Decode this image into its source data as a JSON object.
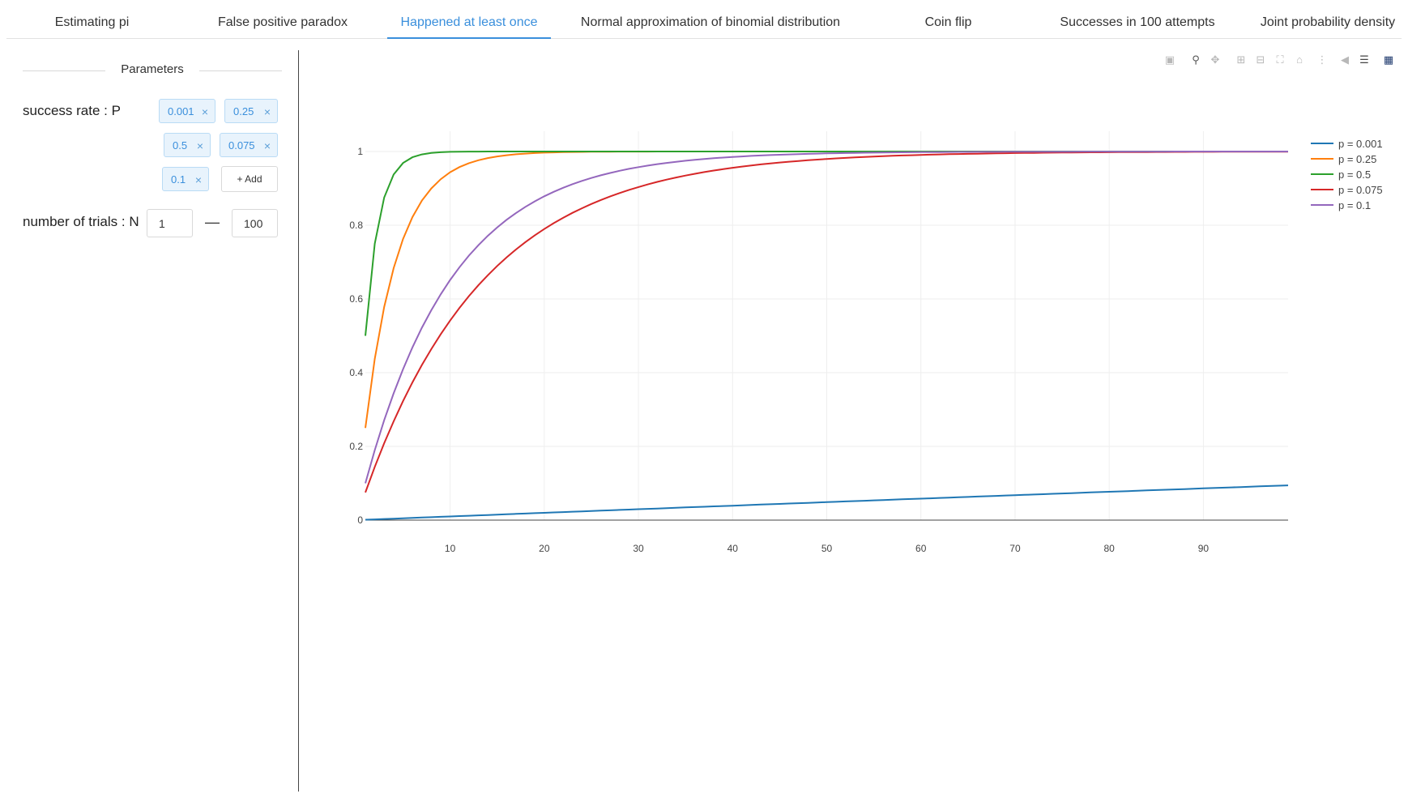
{
  "tabs": [
    {
      "label": "Estimating pi",
      "active": false
    },
    {
      "label": "False positive paradox",
      "active": false
    },
    {
      "label": "Happened at least once",
      "active": true
    },
    {
      "label": "Normal approximation of binomial distribution",
      "active": false
    },
    {
      "label": "Coin flip",
      "active": false
    },
    {
      "label": "Successes in 100 attempts",
      "active": false
    },
    {
      "label": "Joint probability density",
      "active": false
    }
  ],
  "parameters": {
    "title": "Parameters",
    "success_rate_label": "success rate : P",
    "success_rates": [
      "0.001",
      "0.25",
      "0.5",
      "0.075",
      "0.1"
    ],
    "remove_icon": "close-icon",
    "add_label": "+ Add",
    "trials_label": "number of trials : N",
    "trials_min": "1",
    "trials_separator": "—",
    "trials_max": "100"
  },
  "modebar": {
    "icons": [
      "camera-icon",
      "zoom-icon",
      "pan-icon",
      "zoom-in-icon",
      "zoom-out-icon",
      "autoscale-icon",
      "reset-axes-icon",
      "spike-lines-icon",
      "hover-closest-icon",
      "hover-compare-icon",
      "plotly-logo-icon"
    ]
  },
  "chart_data": {
    "type": "line",
    "title": "",
    "xlabel": "",
    "ylabel": "",
    "x_range": [
      1,
      99
    ],
    "y_range": [
      0,
      1
    ],
    "x_ticks": [
      "10",
      "20",
      "30",
      "40",
      "50",
      "60",
      "70",
      "80",
      "90"
    ],
    "x_tick_values": [
      10,
      20,
      30,
      40,
      50,
      60,
      70,
      80,
      90
    ],
    "y_ticks": [
      "0",
      "0.2",
      "0.4",
      "0.6",
      "0.8",
      "1"
    ],
    "y_tick_values": [
      0,
      0.2,
      0.4,
      0.6,
      0.8,
      1
    ],
    "grid": true,
    "legend_position": "top-right",
    "formula": "1-(1-p)^n",
    "series": [
      {
        "name": "p = 0.001",
        "p": 0.001,
        "color": "#1f77b4"
      },
      {
        "name": "p = 0.25",
        "p": 0.25,
        "color": "#ff7f0e"
      },
      {
        "name": "p = 0.5",
        "p": 0.5,
        "color": "#2ca02c"
      },
      {
        "name": "p = 0.075",
        "p": 0.075,
        "color": "#d62728"
      },
      {
        "name": "p = 0.1",
        "p": 0.1,
        "color": "#9467bd"
      }
    ]
  }
}
